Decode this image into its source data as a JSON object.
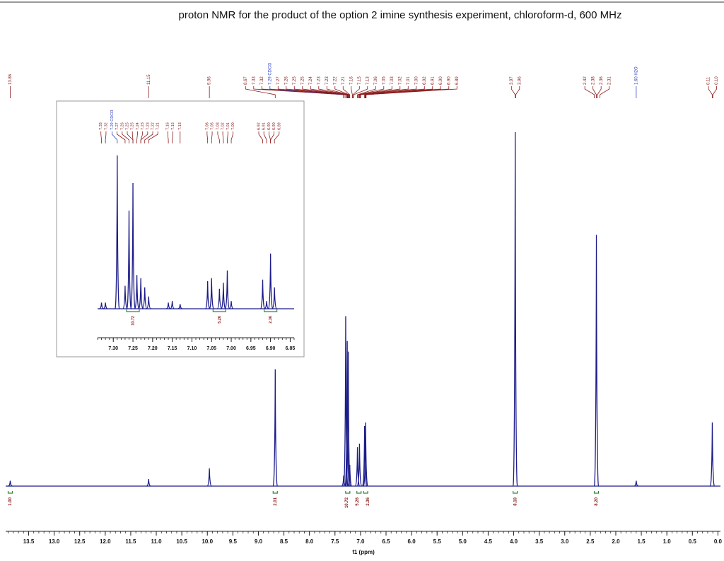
{
  "chart_data": {
    "type": "spectrum",
    "title": "proton NMR for the product of the option 2 imine synthesis experiment, chloroform-d, 600 MHz",
    "xlabel": "f1 (ppm)",
    "xlim": [
      13.95,
      -0.05
    ],
    "ylim": [
      0,
      105
    ],
    "xticks": [
      13.5,
      {
        "value": 13,
        "label": "13.0"
      },
      12.5,
      {
        "value": 12,
        "label": "12.0"
      },
      11.5,
      {
        "value": 11,
        "label": "11.0"
      },
      10.5,
      {
        "value": 10,
        "label": "10.0"
      },
      9.5,
      {
        "value": 9,
        "label": "9.0"
      },
      8.5,
      {
        "value": 8,
        "label": "8.0"
      },
      7.5,
      {
        "value": 7,
        "label": "7.0"
      },
      6.5,
      {
        "value": 6,
        "label": "6.0"
      },
      5.5,
      {
        "value": 5,
        "label": "5.0"
      },
      4.5,
      {
        "value": 4,
        "label": "4.0"
      },
      3.5,
      {
        "value": 3,
        "label": "3.0"
      },
      2.5,
      {
        "value": 2,
        "label": "2.0"
      },
      1.5,
      {
        "value": 1,
        "label": "1.0"
      },
      0.5,
      {
        "value": 0,
        "label": "0.0"
      }
    ],
    "color": "#1c1c8a",
    "label_color": "#8b1a1a",
    "x": [
      13.86,
      11.15,
      9.96,
      8.67,
      7.33,
      7.29,
      7.26,
      7.24,
      7.21,
      7.06,
      7.02,
      6.92,
      6.9,
      3.97,
      2.38,
      1.6,
      0.11
    ],
    "values": [
      1.5,
      2,
      5,
      33,
      3,
      48,
      41,
      38,
      6,
      11,
      12,
      17,
      18,
      100,
      71,
      1.5,
      18
    ],
    "peak_labels": [
      13.86,
      11.15,
      9.96,
      8.67,
      7.33,
      7.32,
      {
        "value": 7.29,
        "label": "7.29 CDCl3",
        "color": "#2b3fc0"
      },
      7.27,
      7.26,
      7.25,
      7.25,
      7.24,
      7.23,
      7.23,
      7.22,
      7.21,
      7.16,
      7.15,
      7.13,
      7.06,
      7.05,
      7.03,
      7.02,
      7.01,
      {
        "value": 7,
        "label": "7.00"
      },
      6.92,
      6.91,
      {
        "value": 6.9,
        "label": "6.90"
      },
      {
        "value": 6.9,
        "label": "6.90"
      },
      6.89,
      3.97,
      3.96,
      2.42,
      2.38,
      2.36,
      2.31,
      {
        "value": 1.6,
        "label": "1.60 H2O",
        "color": "#2b3fc0"
      },
      0.11,
      {
        "value": 0.1,
        "label": "0.10"
      }
    ],
    "integrals": {
      "x": [
        13.86,
        8.67,
        7.25,
        7.03,
        6.9,
        3.97,
        2.38
      ],
      "values": [
        1,
        2.01,
        10.72,
        5.26,
        2.36,
        8.18,
        8.2
      ],
      "value_labels": [
        "1.00",
        "2.01",
        "10.72",
        "5.26",
        "2.36",
        "8.18",
        "8.20"
      ]
    },
    "inset": {
      "xlim": [
        7.34,
        6.84
      ],
      "ylim": [
        0,
        100
      ],
      "xticks": [
        {
          "value": 7.3,
          "label": "7.30"
        },
        7.25,
        {
          "value": 7.2,
          "label": "7.20"
        },
        7.15,
        {
          "value": 7.1,
          "label": "7.10"
        },
        7.05,
        {
          "value": 7,
          "label": "7.00"
        },
        6.95,
        {
          "value": 6.9,
          "label": "6.90"
        },
        6.85
      ],
      "x": [
        7.33,
        7.32,
        7.29,
        7.27,
        7.26,
        7.25,
        7.24,
        7.23,
        7.22,
        7.21,
        7.16,
        7.15,
        7.13,
        7.06,
        7.05,
        7.03,
        7.02,
        7.01,
        7.0,
        6.92,
        6.91,
        6.9,
        6.89
      ],
      "values": [
        4,
        4,
        100,
        15,
        64,
        82,
        22,
        20,
        14,
        8,
        4,
        5,
        3,
        18,
        20,
        13,
        17,
        25,
        5,
        19,
        5,
        36,
        14
      ],
      "peak_labels": [
        7.33,
        7.32,
        {
          "value": 7.29,
          "label": "7.29 CDCl3",
          "color": "#2b3fc0"
        },
        7.27,
        7.26,
        7.25,
        7.25,
        7.24,
        7.23,
        7.23,
        7.22,
        7.21,
        7.16,
        7.15,
        7.13,
        7.06,
        7.05,
        7.03,
        7.02,
        7.01,
        {
          "value": 7,
          "label": "7.00"
        },
        6.92,
        6.91,
        {
          "value": 6.9,
          "label": "6.90"
        },
        {
          "value": 6.9,
          "label": "6.90"
        },
        6.89
      ],
      "integrals": {
        "x": [
          7.25,
          7.03,
          6.9
        ],
        "values": [
          10.72,
          5.26,
          2.36
        ]
      }
    }
  }
}
